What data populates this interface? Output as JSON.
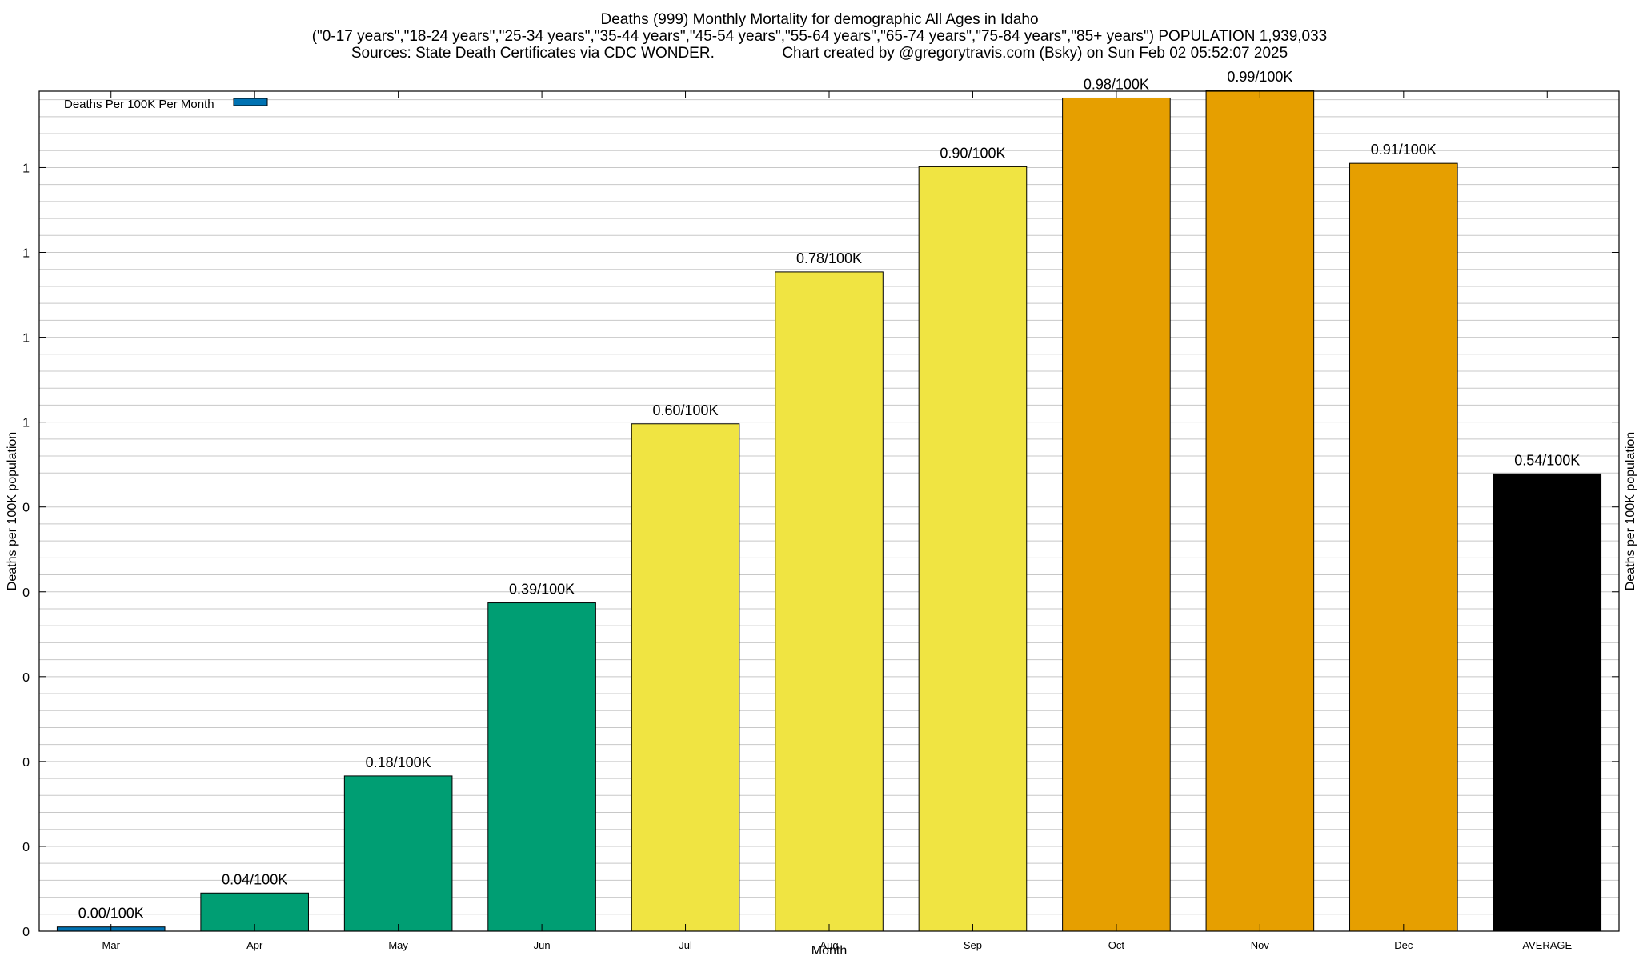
{
  "header": {
    "title": "Deaths (999) Monthly Mortality for demographic All Ages in Idaho",
    "subtitle": "(\"0-17 years\",\"18-24 years\",\"25-34 years\",\"35-44 years\",\"45-54 years\",\"55-64 years\",\"65-74 years\",\"75-84 years\",\"85+ years\") POPULATION 1,939,033",
    "sources": "Sources: State Death Certificates via CDC WONDER.",
    "credit": "Chart created by @gregorytravis.com (Bsky) on Sun Feb 02 05:52:07 2025"
  },
  "chart_data": {
    "type": "bar",
    "categories": [
      "Mar",
      "Apr",
      "May",
      "Jun",
      "Jul",
      "Aug",
      "Sep",
      "Oct",
      "Nov",
      "Dec",
      "AVERAGE"
    ],
    "series": [
      {
        "name": "Deaths Per 100K Per Month",
        "values": [
          0.005,
          0.045,
          0.183,
          0.387,
          0.598,
          0.777,
          0.901,
          0.982,
          0.991,
          0.905,
          0.539
        ],
        "data_labels": [
          "0.00/100K",
          "0.04/100K",
          "0.18/100K",
          "0.39/100K",
          "0.60/100K",
          "0.78/100K",
          "0.90/100K",
          "0.98/100K",
          "0.99/100K",
          "0.91/100K",
          "0.54/100K"
        ],
        "bar_colors": [
          "#0072b2",
          "#009e73",
          "#009e73",
          "#009e73",
          "#f0e442",
          "#f0e442",
          "#f0e442",
          "#e69f00",
          "#e69f00",
          "#e69f00",
          "#000000"
        ]
      }
    ],
    "xlabel": "Month",
    "ylabel": "Deaths per 100K population",
    "y2label": "Deaths per 100K population",
    "ylim": [
      0,
      0.99
    ],
    "y_ticks": [
      0,
      0.1,
      0.2,
      0.3,
      0.4,
      0.5,
      0.6,
      0.7,
      0.8,
      0.9
    ],
    "y_tick_labels": [
      "0",
      "0",
      "0",
      "0",
      "0",
      "0",
      "1",
      "1",
      "1",
      "1"
    ],
    "grid": true,
    "legend_position": "top-left",
    "legend_color": "#0072b2"
  }
}
